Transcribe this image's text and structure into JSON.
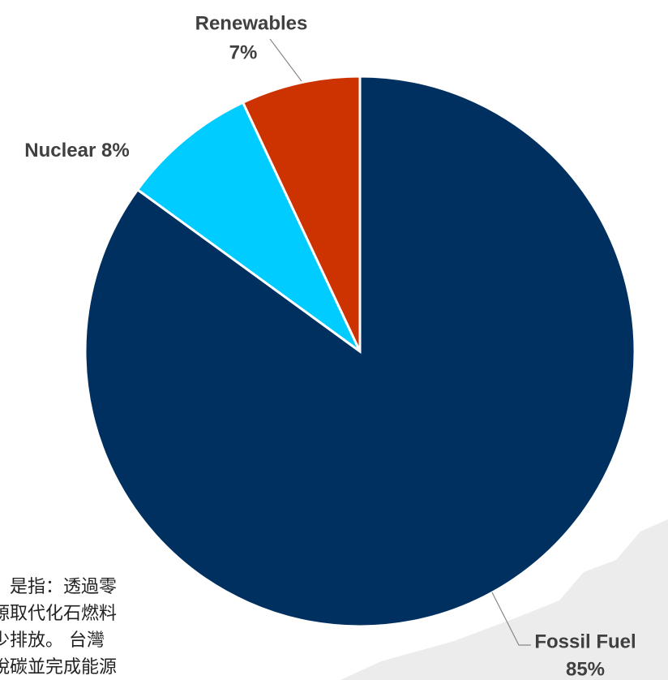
{
  "chart_data": {
    "type": "pie",
    "categories": [
      "Fossil Fuel",
      "Nuclear",
      "Renewables"
    ],
    "values": [
      85,
      8,
      7
    ],
    "value_labels": [
      "85%",
      "8%",
      "7%"
    ],
    "colors": [
      "#003060",
      "#00ccff",
      "#cc3300"
    ]
  },
  "background_text": [
    "：是指：透過零",
    "源取代化石燃料",
    "少排放。 台灣",
    "脫碳並完成能源"
  ]
}
